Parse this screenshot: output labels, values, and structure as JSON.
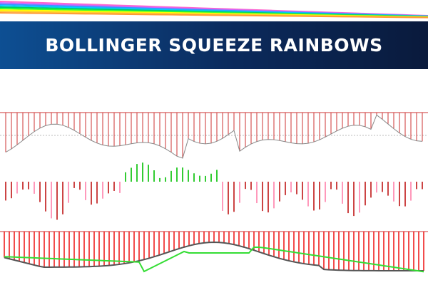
{
  "header": {
    "title": "BOLLINGER SQUEEZE RAINBOWS"
  }
}
